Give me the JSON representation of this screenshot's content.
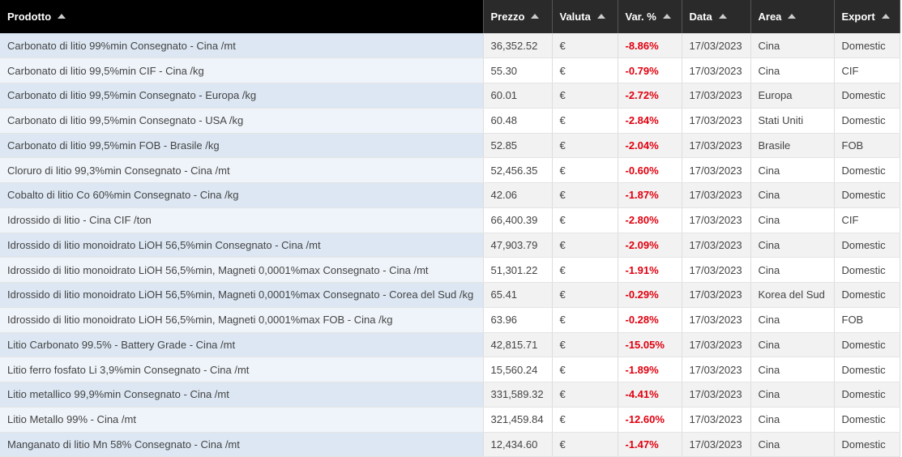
{
  "table": {
    "headers": [
      "Prodotto",
      "Prezzo",
      "Valuta",
      "Var. %",
      "Data",
      "Area",
      "Export"
    ],
    "rows": [
      [
        "Carbonato di litio 99%min Consegnato - Cina /mt",
        "36,352.52",
        "€",
        "-8.86%",
        "17/03/2023",
        "Cina",
        "Domestic"
      ],
      [
        "Carbonato di litio 99,5%min CIF - Cina /kg",
        "55.30",
        "€",
        "-0.79%",
        "17/03/2023",
        "Cina",
        "CIF"
      ],
      [
        "Carbonato di litio 99,5%min Consegnato - Europa /kg",
        "60.01",
        "€",
        "-2.72%",
        "17/03/2023",
        "Europa",
        "Domestic"
      ],
      [
        "Carbonato di litio 99,5%min Consegnato - USA /kg",
        "60.48",
        "€",
        "-2.84%",
        "17/03/2023",
        "Stati Uniti",
        "Domestic"
      ],
      [
        "Carbonato di litio 99,5%min FOB - Brasile /kg",
        "52.85",
        "€",
        "-2.04%",
        "17/03/2023",
        "Brasile",
        "FOB"
      ],
      [
        "Cloruro di litio 99,3%min Consegnato - Cina /mt",
        "52,456.35",
        "€",
        "-0.60%",
        "17/03/2023",
        "Cina",
        "Domestic"
      ],
      [
        "Cobalto di litio Co 60%min Consegnato - Cina /kg",
        "42.06",
        "€",
        "-1.87%",
        "17/03/2023",
        "Cina",
        "Domestic"
      ],
      [
        "Idrossido di litio - Cina CIF /ton",
        "66,400.39",
        "€",
        "-2.80%",
        "17/03/2023",
        "Cina",
        "CIF"
      ],
      [
        "Idrossido di litio monoidrato LiOH 56,5%min Consegnato - Cina /mt",
        "47,903.79",
        "€",
        "-2.09%",
        "17/03/2023",
        "Cina",
        "Domestic"
      ],
      [
        "Idrossido di litio monoidrato LiOH 56,5%min, Magneti 0,0001%max Consegnato - Cina /mt",
        "51,301.22",
        "€",
        "-1.91%",
        "17/03/2023",
        "Cina",
        "Domestic"
      ],
      [
        "Idrossido di litio monoidrato LiOH 56,5%min, Magneti 0,0001%max Consegnato - Corea del Sud /kg",
        "65.41",
        "€",
        "-0.29%",
        "17/03/2023",
        "Korea del Sud",
        "Domestic"
      ],
      [
        "Idrossido di litio monoidrato LiOH 56,5%min, Magneti 0,0001%max FOB - Cina /kg",
        "63.96",
        "€",
        "-0.28%",
        "17/03/2023",
        "Cina",
        "FOB"
      ],
      [
        "Litio Carbonato 99.5% - Battery Grade - Cina /mt",
        "42,815.71",
        "€",
        "-15.05%",
        "17/03/2023",
        "Cina",
        "Domestic"
      ],
      [
        "Litio ferro fosfato Li 3,9%min Consegnato - Cina /mt",
        "15,560.24",
        "€",
        "-1.89%",
        "17/03/2023",
        "Cina",
        "Domestic"
      ],
      [
        "Litio metallico 99,9%min Consegnato - Cina /mt",
        "331,589.32",
        "€",
        "-4.41%",
        "17/03/2023",
        "Cina",
        "Domestic"
      ],
      [
        "Litio Metallo 99% - Cina /mt",
        "321,459.84",
        "€",
        "-12.60%",
        "17/03/2023",
        "Cina",
        "Domestic"
      ],
      [
        "Manganato di litio Mn 58% Consegnato - Cina /mt",
        "12,434.60",
        "€",
        "-1.47%",
        "17/03/2023",
        "Cina",
        "Domestic"
      ]
    ]
  }
}
